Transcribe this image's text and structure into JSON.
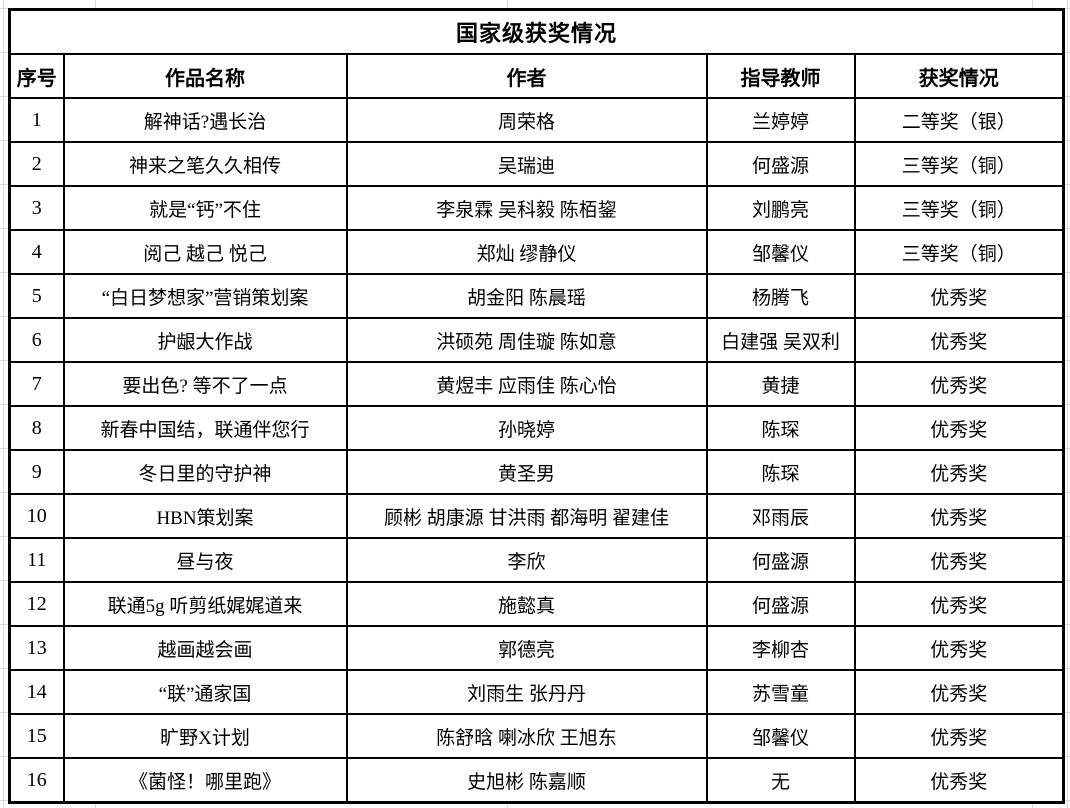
{
  "title": "国家级获奖情况",
  "columns": {
    "no": "序号",
    "work": "作品名称",
    "authors": "作者",
    "teacher": "指导教师",
    "award": "获奖情况"
  },
  "rows": [
    {
      "no": "1",
      "work": "解神话?遇长治",
      "authors": "周荣格",
      "teacher": "兰婷婷",
      "award": "二等奖（银）"
    },
    {
      "no": "2",
      "work": "神来之笔久久相传",
      "authors": "吴瑞迪",
      "teacher": "何盛源",
      "award": "三等奖（铜）"
    },
    {
      "no": "3",
      "work": "就是“钙”不住",
      "authors": "李泉霖 吴科毅 陈栢鋆",
      "teacher": "刘鹏亮",
      "award": "三等奖（铜）"
    },
    {
      "no": "4",
      "work": "阅己 越己 悦己",
      "authors": "郑灿 缪静仪",
      "teacher": "邹馨仪",
      "award": "三等奖（铜）"
    },
    {
      "no": "5",
      "work": "“白日梦想家”营销策划案",
      "authors": "胡金阳 陈晨瑶",
      "teacher": "杨腾飞",
      "award": "优秀奖"
    },
    {
      "no": "6",
      "work": "护龈大作战",
      "authors": "洪硕苑 周佳璇 陈如意",
      "teacher": "白建强 吴双利",
      "award": "优秀奖"
    },
    {
      "no": "7",
      "work": "要出色? 等不了一点",
      "authors": "黄煜丰 应雨佳 陈心怡",
      "teacher": "黄捷",
      "award": "优秀奖"
    },
    {
      "no": "8",
      "work": "新春中国结，联通伴您行",
      "authors": "孙晓婷",
      "teacher": "陈琛",
      "award": "优秀奖"
    },
    {
      "no": "9",
      "work": "冬日里的守护神",
      "authors": "黄圣男",
      "teacher": "陈琛",
      "award": "优秀奖"
    },
    {
      "no": "10",
      "work": "HBN策划案",
      "authors": "顾彬 胡康源 甘洪雨 都海明 翟建佳",
      "teacher": "邓雨辰",
      "award": "优秀奖"
    },
    {
      "no": "11",
      "work": "昼与夜",
      "authors": "李欣",
      "teacher": "何盛源",
      "award": "优秀奖"
    },
    {
      "no": "12",
      "work": "联通5g 听剪纸娓娓道来",
      "authors": "施懿真",
      "teacher": "何盛源",
      "award": "优秀奖"
    },
    {
      "no": "13",
      "work": "越画越会画",
      "authors": "郭德亮",
      "teacher": "李柳杏",
      "award": "优秀奖"
    },
    {
      "no": "14",
      "work": "“联”通家国",
      "authors": "刘雨生 张丹丹",
      "teacher": "苏雪童",
      "award": "优秀奖"
    },
    {
      "no": "15",
      "work": "旷野X计划",
      "authors": "陈舒晗 喇冰欣 王旭东",
      "teacher": "邹馨仪",
      "award": "优秀奖"
    },
    {
      "no": "16",
      "work": "《菌怪！哪里跑》",
      "authors": "史旭彬 陈嘉顺",
      "teacher": "无",
      "award": "优秀奖"
    }
  ],
  "layout_hints": {
    "border_color": "#000000",
    "gridline_color": "#d9d9d9",
    "background": "#ffffff"
  }
}
